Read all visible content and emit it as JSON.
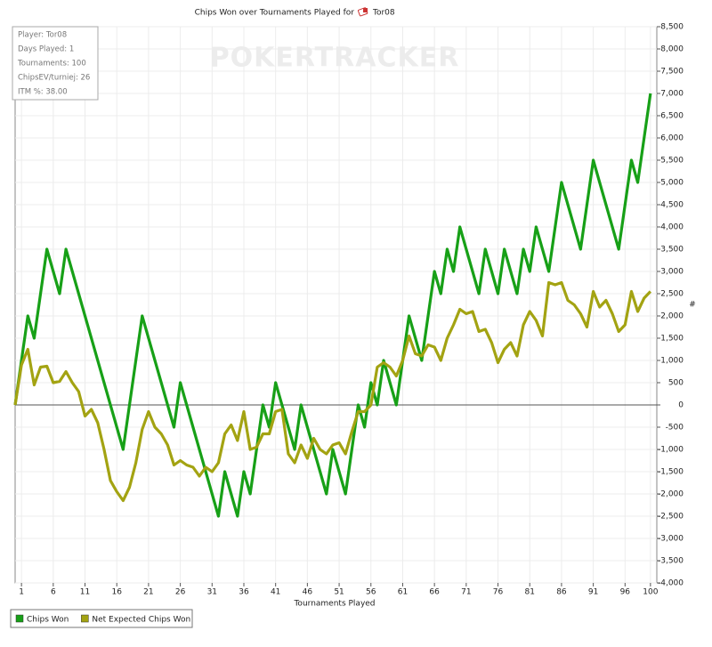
{
  "chart_data": {
    "type": "line",
    "title": "Chips Won over Tournaments Played for",
    "player": "Tor08",
    "watermark": "POKERTRACKER",
    "info": [
      "Player: Tor08",
      "Days Played: 1",
      "Tournaments: 100",
      "ChipsEV/turniej: 26",
      "ITM %: 38.00"
    ],
    "x_label": "Tournaments Played",
    "y_label": "#",
    "x": [
      0,
      1,
      2,
      3,
      4,
      5,
      6,
      7,
      8,
      9,
      10,
      11,
      12,
      13,
      14,
      15,
      16,
      17,
      18,
      19,
      20,
      21,
      22,
      23,
      24,
      25,
      26,
      27,
      28,
      29,
      30,
      31,
      32,
      33,
      34,
      35,
      36,
      37,
      38,
      39,
      40,
      41,
      42,
      43,
      44,
      45,
      46,
      47,
      48,
      49,
      50,
      51,
      52,
      53,
      54,
      55,
      56,
      57,
      58,
      59,
      60,
      61,
      62,
      63,
      64,
      65,
      66,
      67,
      68,
      69,
      70,
      71,
      72,
      73,
      74,
      75,
      76,
      77,
      78,
      79,
      80,
      81,
      82,
      83,
      84,
      85,
      86,
      87,
      88,
      89,
      90,
      91,
      92,
      93,
      94,
      95,
      96,
      97,
      98,
      99,
      100
    ],
    "series": [
      {
        "name": "Chips Won",
        "color": "#17a017",
        "values": [
          0,
          1000,
          2000,
          1500,
          2500,
          3500,
          3000,
          2500,
          3500,
          3000,
          2500,
          2000,
          1500,
          1000,
          500,
          0,
          -500,
          -1000,
          0,
          1000,
          2000,
          1500,
          1000,
          500,
          0,
          -500,
          500,
          0,
          -500,
          -1000,
          -1500,
          -2000,
          -2500,
          -1500,
          -2000,
          -2500,
          -1500,
          -2000,
          -1000,
          0,
          -500,
          500,
          0,
          -500,
          -1000,
          0,
          -500,
          -1000,
          -1500,
          -2000,
          -1000,
          -1500,
          -2000,
          -1000,
          0,
          -500,
          500,
          0,
          1000,
          500,
          0,
          1000,
          2000,
          1500,
          1000,
          2000,
          3000,
          2500,
          3500,
          3000,
          4000,
          3500,
          3000,
          2500,
          3500,
          3000,
          2500,
          3500,
          3000,
          2500,
          3500,
          3000,
          4000,
          3500,
          3000,
          4000,
          5000,
          4500,
          4000,
          3500,
          4500,
          5500,
          5000,
          4500,
          4000,
          3500,
          4500,
          5500,
          5000,
          6000,
          7000
        ]
      },
      {
        "name": "Net Expected Chips Won",
        "color": "#a3a312",
        "values": [
          0,
          900,
          1250,
          450,
          850,
          870,
          500,
          530,
          750,
          500,
          300,
          -250,
          -100,
          -400,
          -1000,
          -1700,
          -1950,
          -2150,
          -1850,
          -1300,
          -550,
          -150,
          -500,
          -650,
          -900,
          -1350,
          -1250,
          -1350,
          -1400,
          -1600,
          -1400,
          -1500,
          -1300,
          -650,
          -450,
          -800,
          -150,
          -1000,
          -950,
          -650,
          -650,
          -150,
          -100,
          -1100,
          -1300,
          -900,
          -1200,
          -750,
          -1000,
          -1100,
          -900,
          -850,
          -1100,
          -600,
          -150,
          -150,
          0,
          850,
          950,
          850,
          650,
          1000,
          1550,
          1150,
          1100,
          1350,
          1300,
          1000,
          1500,
          1800,
          2150,
          2050,
          2100,
          1650,
          1700,
          1400,
          950,
          1250,
          1400,
          1100,
          1800,
          2100,
          1900,
          1550,
          2750,
          2700,
          2750,
          2350,
          2250,
          2050,
          1750,
          2550,
          2200,
          2350,
          2050,
          1650,
          1800,
          2550,
          2100,
          2400,
          2550
        ]
      }
    ],
    "xlim": [
      0,
      101
    ],
    "xticks": [
      1,
      6,
      11,
      16,
      21,
      26,
      31,
      36,
      41,
      46,
      51,
      56,
      61,
      66,
      71,
      76,
      81,
      86,
      91,
      96,
      100
    ],
    "ylim": [
      -4000,
      8500
    ],
    "yticks": [
      {
        "value": -4000,
        "label": "-4,000"
      },
      {
        "value": -3500,
        "label": "-3,500"
      },
      {
        "value": -3000,
        "label": "-3,000"
      },
      {
        "value": -2500,
        "label": "-2,500"
      },
      {
        "value": -2000,
        "label": "-2,000"
      },
      {
        "value": -1500,
        "label": "-1,500"
      },
      {
        "value": -1000,
        "label": "-1,000"
      },
      -500,
      0,
      500,
      {
        "value": 1000,
        "label": "1,000"
      },
      {
        "value": 1500,
        "label": "1,500"
      },
      {
        "value": 2000,
        "label": "2,000"
      },
      {
        "value": 2500,
        "label": "2,500"
      },
      {
        "value": 3000,
        "label": "3,000"
      },
      {
        "value": 3500,
        "label": "3,500"
      },
      {
        "value": 4000,
        "label": "4,000"
      },
      {
        "value": 4500,
        "label": "4,500"
      },
      {
        "value": 5000,
        "label": "5,000"
      },
      {
        "value": 5500,
        "label": "5,500"
      },
      {
        "value": 6000,
        "label": "6,000"
      },
      {
        "value": 6500,
        "label": "6,500"
      },
      {
        "value": 7000,
        "label": "7,000"
      },
      {
        "value": 7500,
        "label": "7,500"
      },
      {
        "value": 8000,
        "label": "8,000"
      },
      {
        "value": 8500,
        "label": "8,500"
      }
    ],
    "grid": true
  }
}
